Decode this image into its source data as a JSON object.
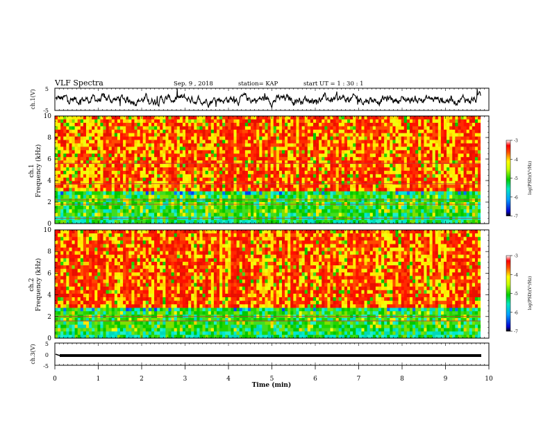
{
  "header": {
    "title": "VLF Spectra",
    "date": "Sep. 9 , 2018",
    "station": "station= KAP",
    "start": "start  UT =  1 : 30 : 1"
  },
  "chart_data": {
    "type": "heatmap",
    "x_axis": {
      "label": "Time  (min)",
      "range": [
        0,
        10
      ],
      "ticks": [
        "0",
        "1",
        "2",
        "3",
        "4",
        "5",
        "6",
        "7",
        "8",
        "9",
        "10"
      ]
    },
    "panels": [
      {
        "id": "ch1-waveform",
        "type": "line",
        "ylabel": "ch.1(V)",
        "ylim": [
          -5,
          5
        ],
        "yticks": [
          "5",
          "-5"
        ],
        "note": "noisy waveform around 0 V, swinging roughly -3 to +3 V"
      },
      {
        "id": "ch1-spectrogram",
        "type": "heatmap",
        "ylabel_top": "ch.1",
        "ylabel": "Frequency  (kHz)",
        "ylim": [
          0,
          10
        ],
        "yticks": [
          "0",
          "2",
          "4",
          "6",
          "8",
          "10"
        ],
        "color_scale": {
          "label": "log(PSD)(V²/Hz)",
          "range": [
            -7,
            -3
          ],
          "ticks": [
            "-3",
            "-4",
            "-5",
            "-6",
            "-7"
          ]
        },
        "bands": [
          {
            "from_khz": 0,
            "to_khz": 3,
            "dominant": "green / cyan (about -5.5)"
          },
          {
            "from_khz": 3,
            "to_khz": 10,
            "dominant": "red / yellow (about -4)"
          }
        ],
        "horizontal_lines_khz": [
          0.5,
          1.8,
          2.2,
          3.7,
          5.6
        ]
      },
      {
        "id": "ch2-spectrogram",
        "type": "heatmap",
        "ylabel_top": "ch.2",
        "ylabel": "Frequency  (kHz)",
        "ylim": [
          0,
          10
        ],
        "yticks": [
          "0",
          "2",
          "4",
          "6",
          "8",
          "10"
        ],
        "color_scale": {
          "label": "log(PSD)(V²/Hz)",
          "range": [
            -7,
            -3
          ],
          "ticks": [
            "-3",
            "-4",
            "-5",
            "-6",
            "-7"
          ]
        },
        "bands": [
          {
            "from_khz": 0,
            "to_khz": 2.8,
            "dominant": "green / cyan (about -5.5)"
          },
          {
            "from_khz": 2.8,
            "to_khz": 10,
            "dominant": "red / yellow (about -4)"
          }
        ],
        "horizontal_lines_khz": [
          1.6,
          2.0
        ]
      },
      {
        "id": "ch3-waveform",
        "type": "line",
        "ylabel": "ch.3(V)",
        "ylim": [
          -5,
          5
        ],
        "yticks": [
          "5",
          "0",
          "-5"
        ],
        "note": "flat thick line near 0 V across the whole record"
      }
    ],
    "grid": false
  }
}
